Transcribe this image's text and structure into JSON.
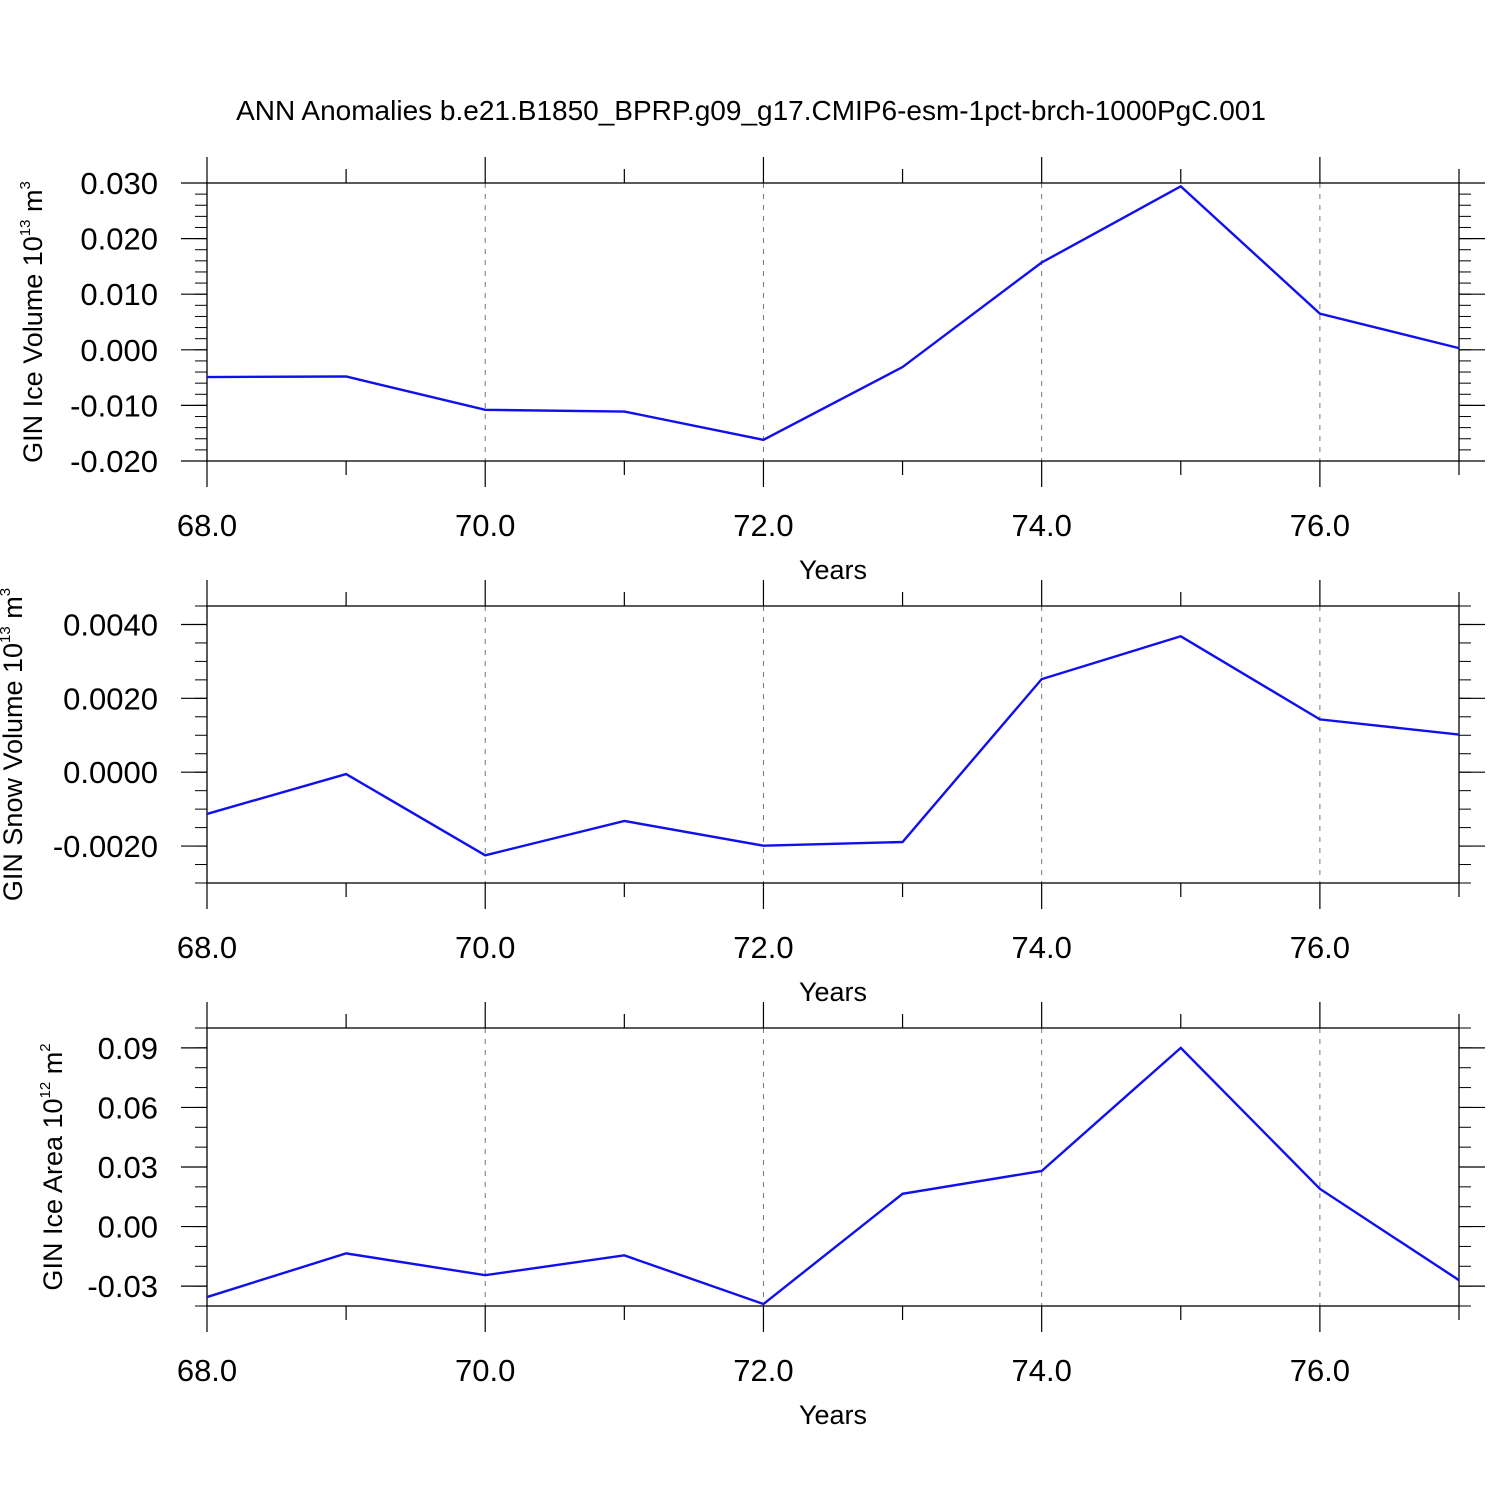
{
  "figure": {
    "title": "ANN Anomalies b.e21.B1850_BPRP.g09_g17.CMIP6-esm-1pct-brch-1000PgC.001",
    "line_color": "#1010ee"
  },
  "chart_data": [
    {
      "type": "line",
      "xlabel": "Years",
      "ylabel": {
        "prefix": "GIN Ice Volume 10",
        "exp": "13",
        "unit": " m",
        "unit_exp": "3"
      },
      "xlim": [
        68,
        77
      ],
      "ylim": [
        -0.02,
        0.03
      ],
      "x_ticks": [
        68,
        70,
        72,
        74,
        76
      ],
      "x_tick_labels": [
        "68.0",
        "70.0",
        "72.0",
        "74.0",
        "76.0"
      ],
      "y_ticks": [
        -0.02,
        -0.01,
        0.0,
        0.01,
        0.02,
        0.03
      ],
      "y_tick_labels": [
        "-0.020",
        "-0.010",
        "0.000",
        "0.010",
        "0.020",
        "0.030"
      ],
      "y_minor_step": 0.002,
      "grid": "x-dashed",
      "series": [
        {
          "x": [
            68,
            69,
            70,
            71,
            72,
            73,
            74,
            75,
            76,
            77
          ],
          "values": [
            -0.0049,
            -0.0048,
            -0.0108,
            -0.0111,
            -0.0162,
            -0.0031,
            0.0157,
            0.0294,
            0.0065,
            0.0003
          ]
        }
      ]
    },
    {
      "type": "line",
      "xlabel": "Years",
      "ylabel": {
        "prefix": "GIN Snow Volume 10",
        "exp": "13",
        "unit": " m",
        "unit_exp": "3"
      },
      "xlim": [
        68,
        77
      ],
      "ylim": [
        -0.003,
        0.0045
      ],
      "x_ticks": [
        68,
        70,
        72,
        74,
        76
      ],
      "x_tick_labels": [
        "68.0",
        "70.0",
        "72.0",
        "74.0",
        "76.0"
      ],
      "y_ticks": [
        -0.002,
        0.0,
        0.002,
        0.004
      ],
      "y_tick_labels": [
        "-0.0020",
        "0.0000",
        "0.0020",
        "0.0040"
      ],
      "y_minor_step": 0.0005,
      "grid": "x-dashed",
      "series": [
        {
          "x": [
            68,
            69,
            70,
            71,
            72,
            73,
            74,
            75,
            76,
            77
          ],
          "values": [
            -0.00113,
            -5e-05,
            -0.00225,
            -0.00132,
            -0.00199,
            -0.00189,
            0.00252,
            0.00368,
            0.00143,
            0.00102
          ]
        }
      ]
    },
    {
      "type": "line",
      "xlabel": "Years",
      "ylabel": {
        "prefix": "GIN Ice Area 10",
        "exp": "12",
        "unit": " m",
        "unit_exp": "2"
      },
      "xlim": [
        68,
        77
      ],
      "ylim": [
        -0.04,
        0.1
      ],
      "x_ticks": [
        68,
        70,
        72,
        74,
        76
      ],
      "x_tick_labels": [
        "68.0",
        "70.0",
        "72.0",
        "74.0",
        "76.0"
      ],
      "y_ticks": [
        -0.03,
        0.0,
        0.03,
        0.06,
        0.09
      ],
      "y_tick_labels": [
        "-0.03",
        "0.00",
        "0.03",
        "0.06",
        "0.09"
      ],
      "y_minor_step": 0.01,
      "grid": "x-dashed",
      "series": [
        {
          "x": [
            68,
            69,
            70,
            71,
            72,
            73,
            74,
            75,
            76,
            77
          ],
          "values": [
            -0.0355,
            -0.0135,
            -0.0245,
            -0.0145,
            -0.039,
            0.0165,
            0.028,
            0.09,
            0.019,
            -0.027
          ]
        }
      ]
    }
  ]
}
